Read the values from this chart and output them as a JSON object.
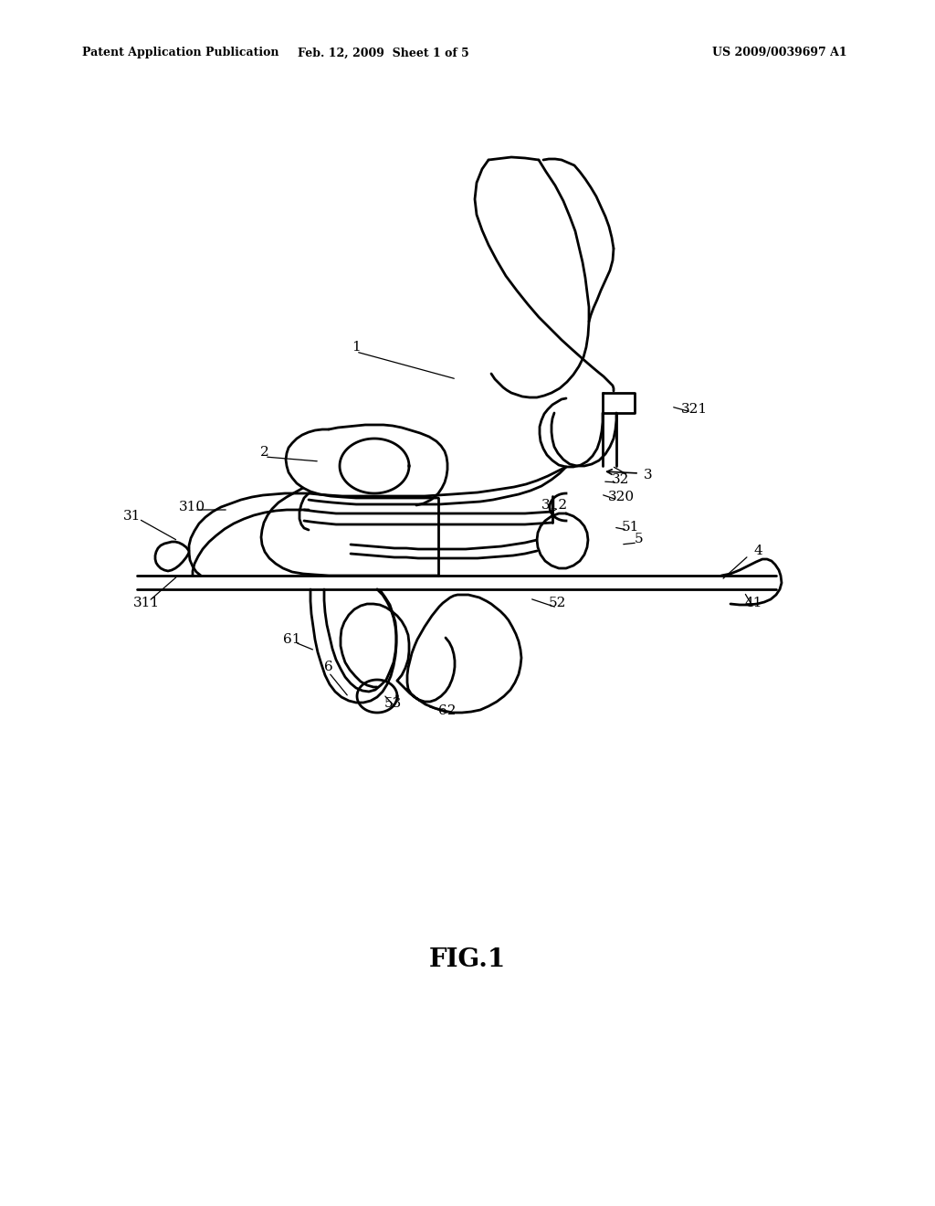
{
  "bg_color": "#ffffff",
  "line_color": "#000000",
  "header_left": "Patent Application Publication",
  "header_mid": "Feb. 12, 2009  Sheet 1 of 5",
  "header_right": "US 2009/0039697 A1",
  "fig_label": "FIG.1",
  "lw": 2.0
}
